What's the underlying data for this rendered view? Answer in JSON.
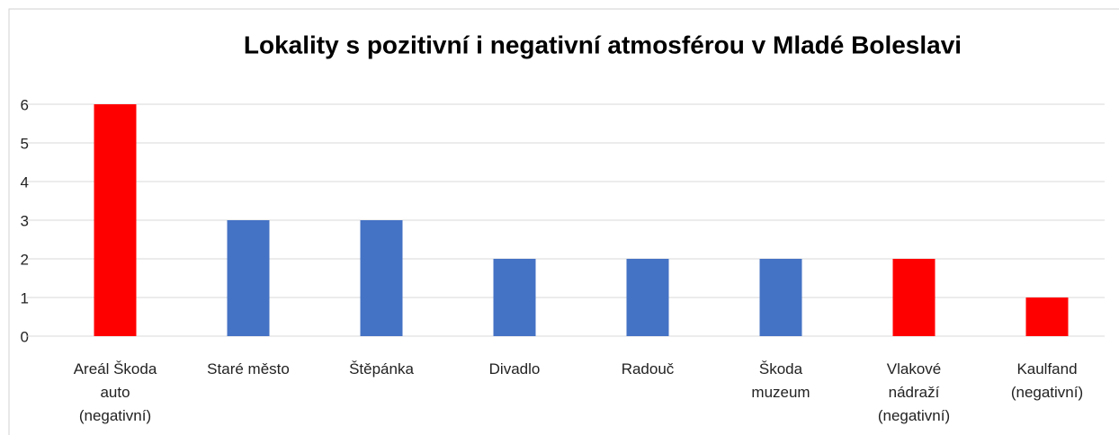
{
  "chart_data": {
    "type": "bar",
    "title": "Lokality s pozitivní i negativní atmosférou v Mladé Boleslavi",
    "categories": [
      "Areál Škoda\nauto\n(negativní)",
      "Staré město",
      "Štěpánka",
      "Divadlo",
      "Radouč",
      "Škoda\nmuzeum",
      "Vlakové\nnádraží\n(negativní)",
      "Kaulfand\n(negativní)"
    ],
    "values": [
      6,
      3,
      3,
      2,
      2,
      2,
      2,
      1
    ],
    "colors": [
      "#ff0000",
      "#4472c4",
      "#4472c4",
      "#4472c4",
      "#4472c4",
      "#4472c4",
      "#ff0000",
      "#ff0000"
    ],
    "ylim": [
      0,
      6
    ],
    "yticks": [
      0,
      1,
      2,
      3,
      4,
      5,
      6
    ],
    "grid": true
  }
}
